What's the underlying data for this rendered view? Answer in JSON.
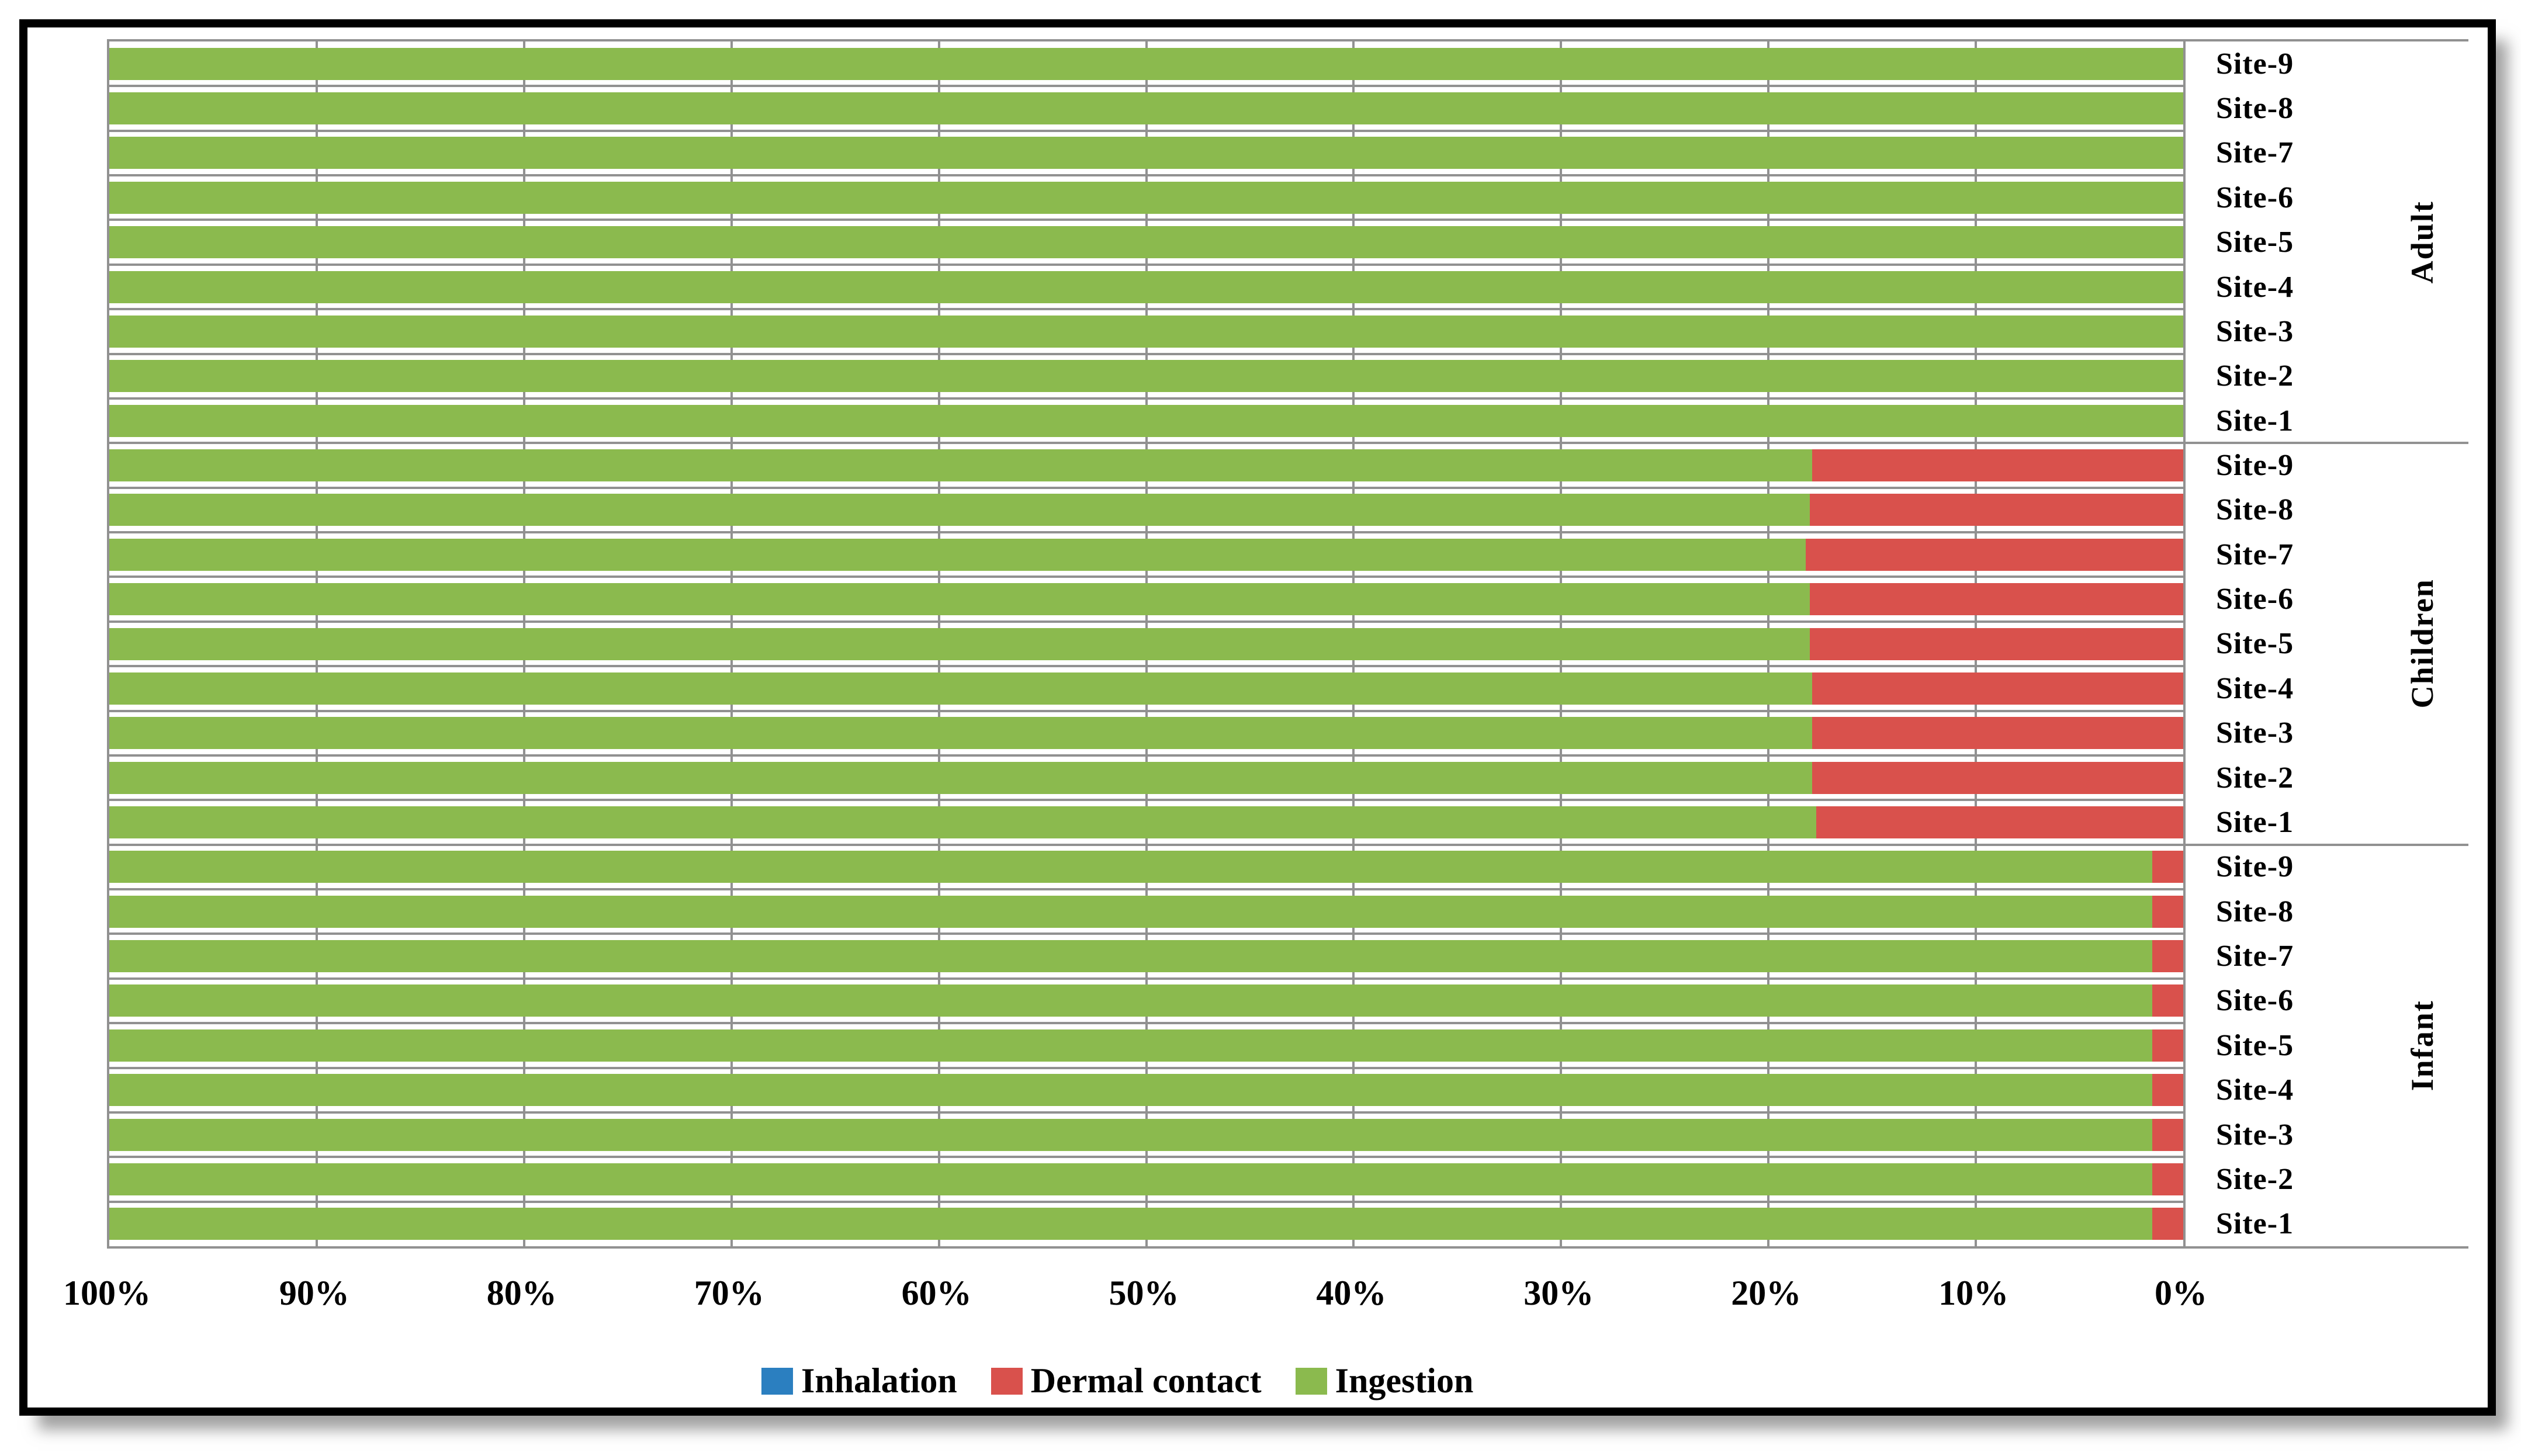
{
  "chart_data": {
    "type": "bar",
    "subtype": "horizontal-100pct-stacked",
    "title": "",
    "xlabel": "",
    "ylabel": "",
    "axis": {
      "value_axis_reversed": true,
      "range": [
        0,
        100
      ],
      "tick_labels": [
        "100%",
        "90%",
        "80%",
        "70%",
        "60%",
        "50%",
        "40%",
        "30%",
        "20%",
        "10%",
        "0%"
      ],
      "gridlines": true
    },
    "legend": {
      "position": "bottom",
      "entries": [
        {
          "label": "Inhalation",
          "color": "#2B7FC0"
        },
        {
          "label": "Dermal contact",
          "color": "#D9514C"
        },
        {
          "label": "Ingestion",
          "color": "#8BBA4E"
        }
      ]
    },
    "colors": {
      "inhalation": "#2B7FC0",
      "dermal": "#D9514C",
      "ingestion": "#8BBA4E",
      "gridline": "#919191",
      "text": "#000000",
      "frame": "#000000"
    },
    "groups": [
      {
        "name": "Adult",
        "rows": [
          {
            "site": "Site-9",
            "inhalation": 0,
            "dermal": 0,
            "ingestion": 100
          },
          {
            "site": "Site-8",
            "inhalation": 0,
            "dermal": 0,
            "ingestion": 100
          },
          {
            "site": "Site-7",
            "inhalation": 0,
            "dermal": 0,
            "ingestion": 100
          },
          {
            "site": "Site-6",
            "inhalation": 0,
            "dermal": 0,
            "ingestion": 100
          },
          {
            "site": "Site-5",
            "inhalation": 0,
            "dermal": 0,
            "ingestion": 100
          },
          {
            "site": "Site-4",
            "inhalation": 0,
            "dermal": 0,
            "ingestion": 100
          },
          {
            "site": "Site-3",
            "inhalation": 0,
            "dermal": 0,
            "ingestion": 100
          },
          {
            "site": "Site-2",
            "inhalation": 0,
            "dermal": 0,
            "ingestion": 100
          },
          {
            "site": "Site-1",
            "inhalation": 0,
            "dermal": 0,
            "ingestion": 100
          }
        ]
      },
      {
        "name": "Children",
        "rows": [
          {
            "site": "Site-9",
            "inhalation": 0,
            "dermal": 17.9,
            "ingestion": 82.1
          },
          {
            "site": "Site-8",
            "inhalation": 0,
            "dermal": 18.0,
            "ingestion": 82.0
          },
          {
            "site": "Site-7",
            "inhalation": 0,
            "dermal": 18.2,
            "ingestion": 81.8
          },
          {
            "site": "Site-6",
            "inhalation": 0,
            "dermal": 18.0,
            "ingestion": 82.0
          },
          {
            "site": "Site-5",
            "inhalation": 0,
            "dermal": 18.0,
            "ingestion": 82.0
          },
          {
            "site": "Site-4",
            "inhalation": 0,
            "dermal": 17.9,
            "ingestion": 82.1
          },
          {
            "site": "Site-3",
            "inhalation": 0,
            "dermal": 17.9,
            "ingestion": 82.1
          },
          {
            "site": "Site-2",
            "inhalation": 0,
            "dermal": 17.9,
            "ingestion": 82.1
          },
          {
            "site": "Site-1",
            "inhalation": 0,
            "dermal": 17.7,
            "ingestion": 82.3
          }
        ]
      },
      {
        "name": "Infant",
        "rows": [
          {
            "site": "Site-9",
            "inhalation": 0,
            "dermal": 1.5,
            "ingestion": 98.5
          },
          {
            "site": "Site-8",
            "inhalation": 0,
            "dermal": 1.5,
            "ingestion": 98.5
          },
          {
            "site": "Site-7",
            "inhalation": 0,
            "dermal": 1.5,
            "ingestion": 98.5
          },
          {
            "site": "Site-6",
            "inhalation": 0,
            "dermal": 1.5,
            "ingestion": 98.5
          },
          {
            "site": "Site-5",
            "inhalation": 0,
            "dermal": 1.5,
            "ingestion": 98.5
          },
          {
            "site": "Site-4",
            "inhalation": 0,
            "dermal": 1.5,
            "ingestion": 98.5
          },
          {
            "site": "Site-3",
            "inhalation": 0,
            "dermal": 1.5,
            "ingestion": 98.5
          },
          {
            "site": "Site-2",
            "inhalation": 0,
            "dermal": 1.5,
            "ingestion": 98.5
          },
          {
            "site": "Site-1",
            "inhalation": 0,
            "dermal": 1.5,
            "ingestion": 98.5
          }
        ]
      }
    ]
  }
}
